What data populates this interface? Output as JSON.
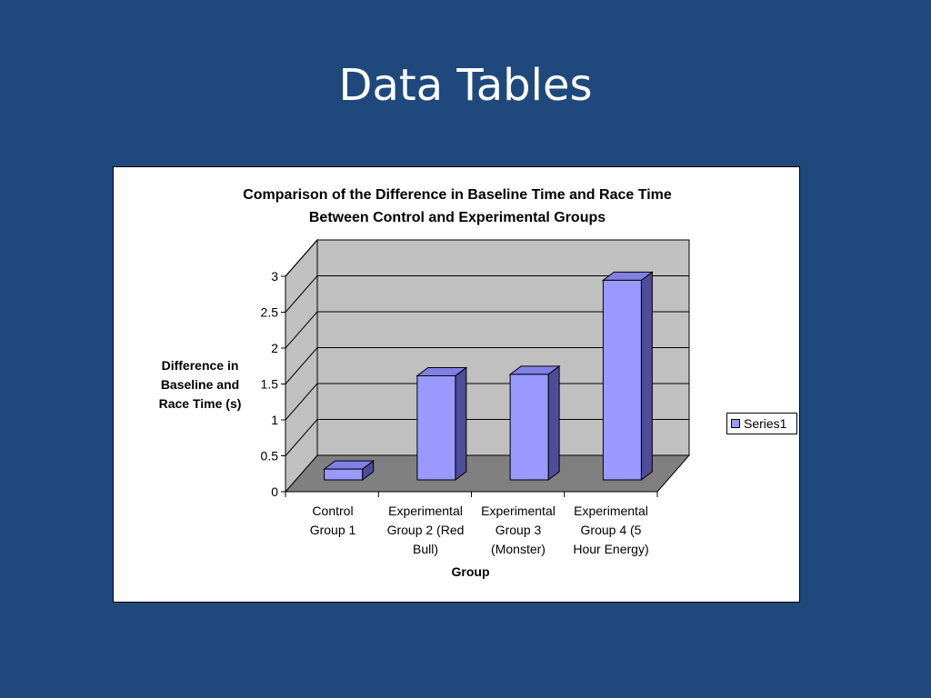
{
  "slide": {
    "title": "Data Tables"
  },
  "colors": {
    "background": "#1f497d",
    "bar_front": "#9999ff",
    "bar_top": "#8080e6",
    "bar_side": "#4d4d99",
    "wall": "#c0c0c0",
    "floor": "#808080"
  },
  "chart_data": {
    "type": "bar",
    "title_lines": [
      "Comparison of the Difference in Baseline Time and Race Time",
      "Between Control and Experimental Groups"
    ],
    "ylabel_lines": [
      "Difference in",
      "Baseline and",
      "Race Time (s)"
    ],
    "xlabel": "Group",
    "categories": [
      [
        "Control",
        "Group 1"
      ],
      [
        "Experimental",
        "Group 2 (Red",
        "Bull)"
      ],
      [
        "Experimental",
        "Group 3",
        "(Monster)"
      ],
      [
        "Experimental",
        "Group 4 (5",
        "Hour Energy)"
      ]
    ],
    "series": [
      {
        "name": "Series1",
        "values": [
          0.15,
          1.45,
          1.47,
          2.78
        ]
      }
    ],
    "yticks": [
      "0",
      "0.5",
      "1",
      "1.5",
      "2",
      "2.5",
      "3"
    ],
    "ylim": [
      0,
      3
    ],
    "grid": true,
    "legend": {
      "position": "right"
    },
    "style": "3d-column"
  }
}
